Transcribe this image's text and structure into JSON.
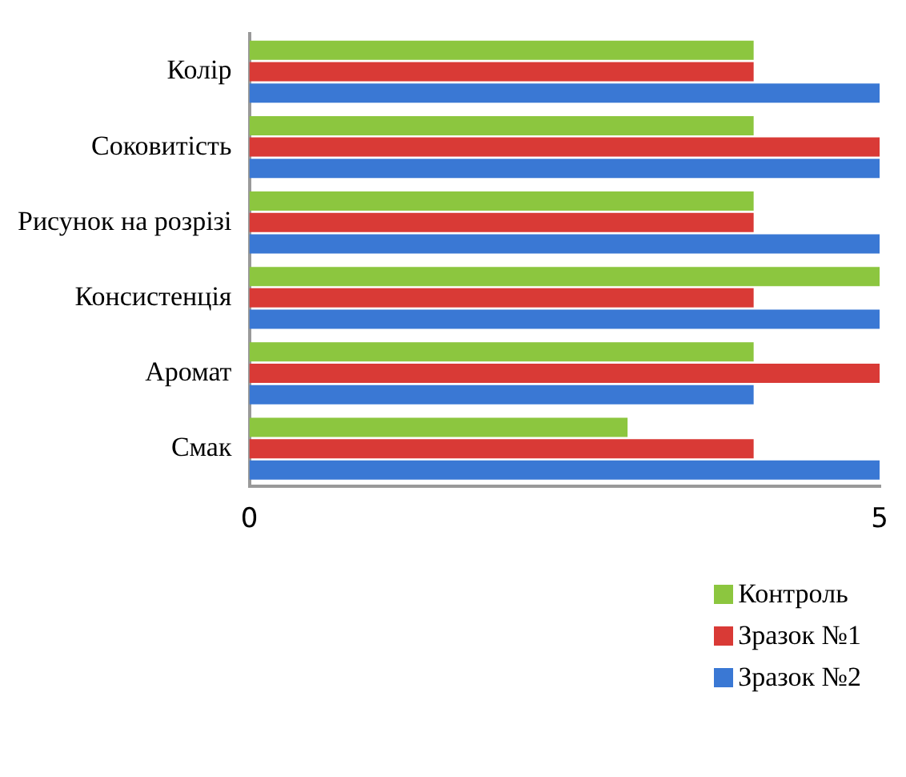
{
  "chart_data": {
    "type": "bar",
    "orientation": "horizontal",
    "categories": [
      "Колір",
      "Соковитість",
      "Рисунок на розрізі",
      "Консистенція",
      "Аромат",
      "Смак"
    ],
    "series": [
      {
        "name": "Контроль",
        "color": "#8cc63f",
        "values": [
          4,
          4,
          4,
          5,
          4,
          3
        ]
      },
      {
        "name": "Зразок №1",
        "color": "#d93a36",
        "values": [
          4,
          5,
          4,
          4,
          5,
          4
        ]
      },
      {
        "name": "Зразок №2",
        "color": "#3a78d4",
        "values": [
          5,
          5,
          5,
          5,
          4,
          5
        ]
      }
    ],
    "xlim": [
      0,
      5
    ],
    "xticks": [
      0,
      5
    ],
    "legend": "bottom right"
  }
}
